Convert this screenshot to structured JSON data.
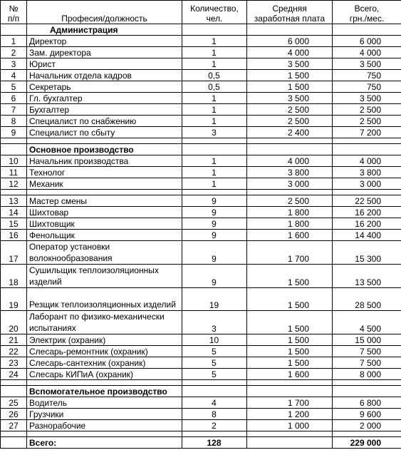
{
  "headers": {
    "num": "№\nп/п",
    "profession": "Професия/должность",
    "qty": "Количество,\nчел.",
    "salary": "Средняя\nзаработная плата",
    "total": "Всего,\nгрн./мес."
  },
  "sections": [
    {
      "title": "Администрация",
      "rows": [
        {
          "n": "1",
          "name": "Директор",
          "qty": "1",
          "salary": "6 000",
          "total": "6 000"
        },
        {
          "n": "2",
          "name": "Зам. директора",
          "qty": "1",
          "salary": "4 000",
          "total": "4 000"
        },
        {
          "n": "3",
          "name": "Юрист",
          "qty": "1",
          "salary": "3 500",
          "total": "3 500"
        },
        {
          "n": "4",
          "name": "Начальник отдела кадров",
          "qty": "0,5",
          "salary": "1 500",
          "total": "750"
        },
        {
          "n": "5",
          "name": "Секретарь",
          "qty": "0,5",
          "salary": "1 500",
          "total": "750"
        },
        {
          "n": "6",
          "name": "Гл. бухгалтер",
          "qty": "1",
          "salary": "3 500",
          "total": "3 500"
        },
        {
          "n": "7",
          "name": "Бухгалтер",
          "qty": "1",
          "salary": "2 500",
          "total": "2 500"
        },
        {
          "n": "8",
          "name": "Специалист по снабжению",
          "qty": "1",
          "salary": "2 500",
          "total": "2 500"
        },
        {
          "n": "9",
          "name": "Специалист по сбыту",
          "qty": "3",
          "salary": "2 400",
          "total": "7 200"
        }
      ]
    },
    {
      "title": "Основное производство",
      "rows": [
        {
          "n": "10",
          "name": "Начальник производства",
          "qty": "1",
          "salary": "4 000",
          "total": "4 000"
        },
        {
          "n": "11",
          "name": "Технолог",
          "qty": "1",
          "salary": "3 800",
          "total": "3 800"
        },
        {
          "n": "12",
          "name": "Механик",
          "qty": "1",
          "salary": "3 000",
          "total": "3 000"
        },
        {
          "blank": true
        },
        {
          "n": "13",
          "name": "Мастер смены",
          "qty": "9",
          "salary": "2 500",
          "total": "22 500"
        },
        {
          "n": "14",
          "name": "Шихтовар",
          "qty": "9",
          "salary": "1 800",
          "total": "16 200"
        },
        {
          "n": "15",
          "name": "Шихтовщик",
          "qty": "9",
          "salary": "1 800",
          "total": "16 200"
        },
        {
          "n": "16",
          "name": "Фенольщик",
          "qty": "9",
          "salary": "1 600",
          "total": "14 400"
        },
        {
          "n": "17",
          "name": "Оператор установки волокнообразования",
          "qty": "9",
          "salary": "1 700",
          "total": "15 300",
          "tall": true
        },
        {
          "n": "18",
          "name": "Сушильщик теплоизоляционных изделий",
          "qty": "9",
          "salary": "1 500",
          "total": "13 500",
          "tall": true
        },
        {
          "n": "19",
          "name": "Резщик теплоизоляционных изделий",
          "qty": "19",
          "salary": "1 500",
          "total": "28 500",
          "tall": true
        },
        {
          "n": "20",
          "name": "Лаборант по физико-механически испытаниях",
          "qty": "3",
          "salary": "1 500",
          "total": "4 500",
          "tall": true
        },
        {
          "n": "21",
          "name": "Электрик (охраник)",
          "qty": "10",
          "salary": "1 500",
          "total": "15 000"
        },
        {
          "n": "22",
          "name": "Слесарь-ремонтник (охраник)",
          "qty": "5",
          "salary": "1 500",
          "total": "7 500"
        },
        {
          "n": "23",
          "name": "Слесарь-сантехник (охраник)",
          "qty": "5",
          "salary": "1 500",
          "total": "7 500"
        },
        {
          "n": "24",
          "name": "Слесарь КИПиА (охраник)",
          "qty": "5",
          "salary": "1 600",
          "total": "8 000"
        }
      ]
    },
    {
      "title": "Вспомогательное производство",
      "rows": [
        {
          "n": "25",
          "name": "Водитель",
          "qty": "4",
          "salary": "1 700",
          "total": "6 800"
        },
        {
          "n": "26",
          "name": "Грузчики",
          "qty": "8",
          "salary": "1 200",
          "total": "9 600"
        },
        {
          "n": "27",
          "name": "Разнорабочие",
          "qty": "2",
          "salary": "1 000",
          "total": "2 000"
        }
      ]
    }
  ],
  "footer": {
    "label": "Всего:",
    "qty": "128",
    "total": "229 000"
  }
}
